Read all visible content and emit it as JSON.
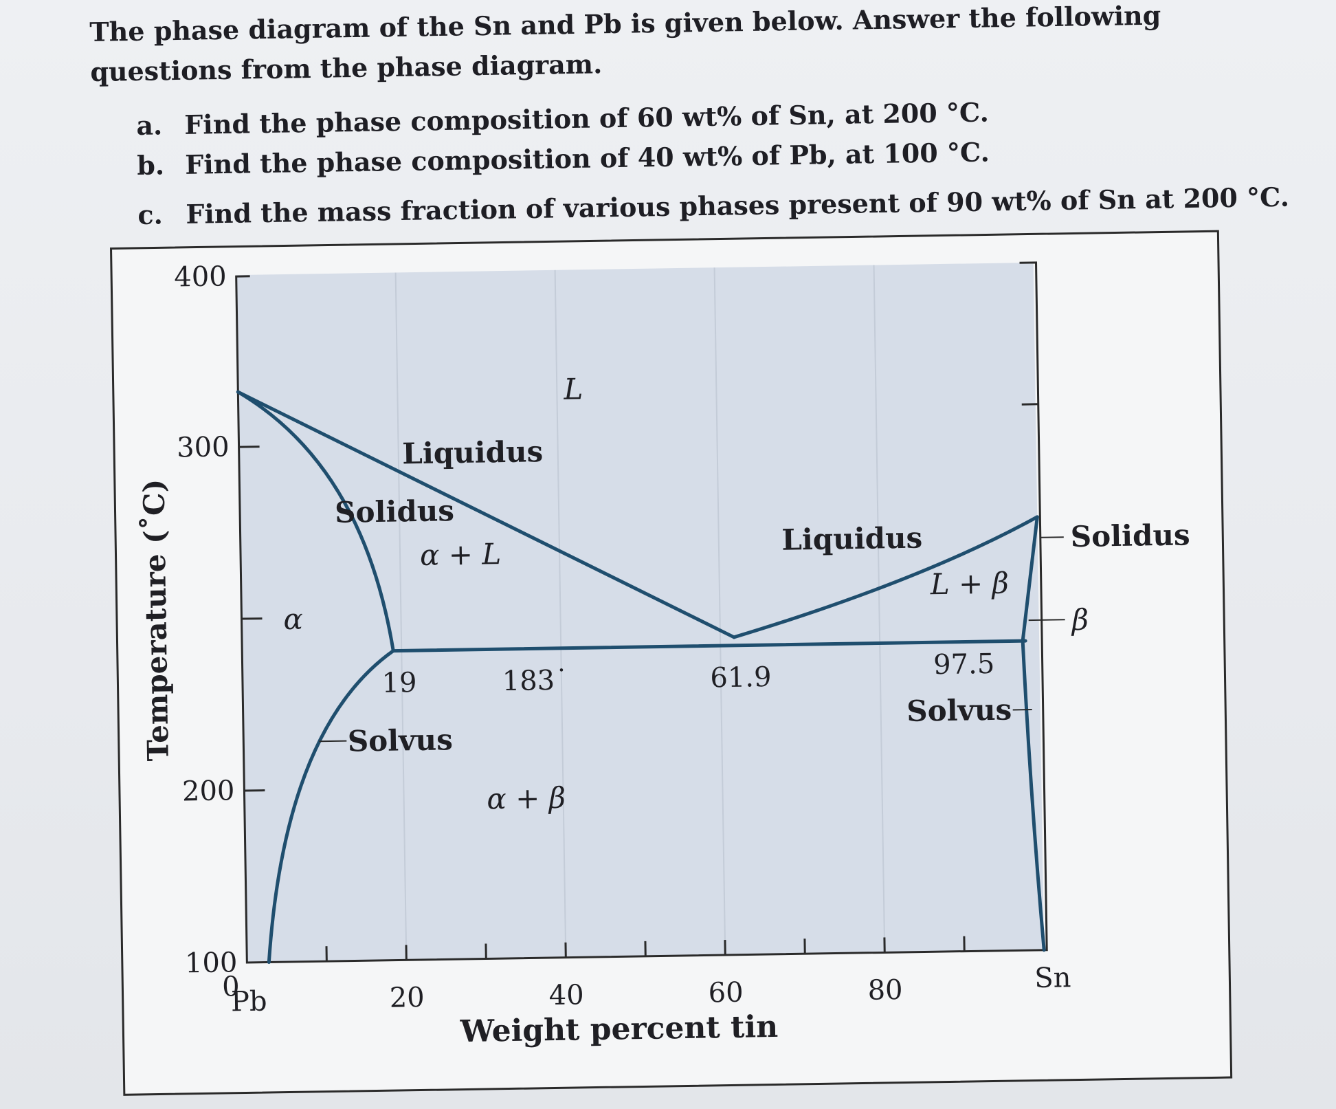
{
  "intro": "The phase diagram of the Sn and Pb is given below. Answer the following questions from the phase diagram.",
  "questions": [
    {
      "label": "a.",
      "text": "Find the phase composition of 60 wt% of Sn, at 200 °C."
    },
    {
      "label": "b.",
      "text": "Find the phase composition of 40 wt% of Pb, at 100 °C."
    },
    {
      "label": "c.",
      "text": "Find the mass fraction of various phases present of 90 wt% of Sn at 200 °C."
    }
  ],
  "diagram": {
    "ylabel": "Temperature (˚C)",
    "xlabel": "Weight percent tin",
    "y_ticks": [
      "400",
      "300",
      "200",
      "100",
      "0"
    ],
    "x_ticks": [
      "20",
      "40",
      "60",
      "80"
    ],
    "left_end_label": "Pb",
    "right_end_label": "Sn",
    "labels": {
      "L": "L",
      "liquidus_left": "Liquidus",
      "solidus_left": "Solidus",
      "alpha_L": "α + L",
      "alpha": "α",
      "c19": "19",
      "t183": "183˙",
      "c619": "61.9",
      "liquidus_right": "Liquidus",
      "L_beta": "L + β",
      "c975": "97.5",
      "solidus_right": "Solidus",
      "beta": "β",
      "solvus_left": "Solvus",
      "solvus_right": "Solvus",
      "alpha_beta": "α + β"
    },
    "colors": {
      "region": "#d6dde8",
      "line": "#1f4e6e"
    },
    "axes": {
      "x_range": [
        0,
        100
      ],
      "y_range": [
        0,
        400
      ]
    }
  }
}
